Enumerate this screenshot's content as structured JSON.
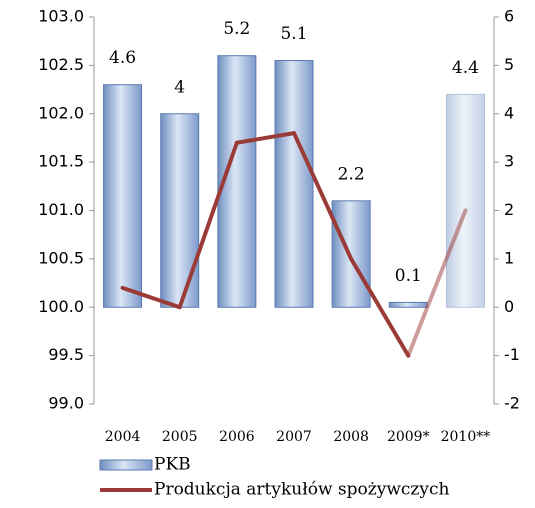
{
  "chart_data": {
    "type": "bar",
    "categories": [
      "2004",
      "2005",
      "2006",
      "2007",
      "2008",
      "2009*",
      "2010**"
    ],
    "series": [
      {
        "name": "PKB",
        "type": "bar",
        "axis": "y2",
        "color": "#a9bfdf",
        "values": [
          4.6,
          4.0,
          5.2,
          5.1,
          2.2,
          0.1,
          4.4
        ]
      },
      {
        "name": "Produkcja artykułów spożywczych",
        "type": "line",
        "axis": "y2",
        "color": "#9b3b38",
        "values": [
          0.4,
          0,
          3.4,
          3.6,
          1,
          -1,
          2
        ]
      }
    ],
    "ylim": [
      99,
      103
    ],
    "yticks": [
      {
        "value": 99,
        "label": "99.0"
      },
      {
        "value": 99.5,
        "label": "99.5"
      },
      {
        "value": 100,
        "label": "100.0"
      },
      {
        "value": 100.5,
        "label": "100.5"
      },
      {
        "value": 101,
        "label": "101.0"
      },
      {
        "value": 101.5,
        "label": "101.5"
      },
      {
        "value": 102,
        "label": "102.0"
      },
      {
        "value": 102.5,
        "label": "102.5"
      },
      {
        "value": 103,
        "label": "103.0"
      }
    ],
    "y2lim": [
      -2,
      6
    ],
    "y2ticks": [
      -2,
      -1,
      0,
      1,
      2,
      3,
      4,
      5,
      6
    ],
    "legend": "bottom-left"
  }
}
